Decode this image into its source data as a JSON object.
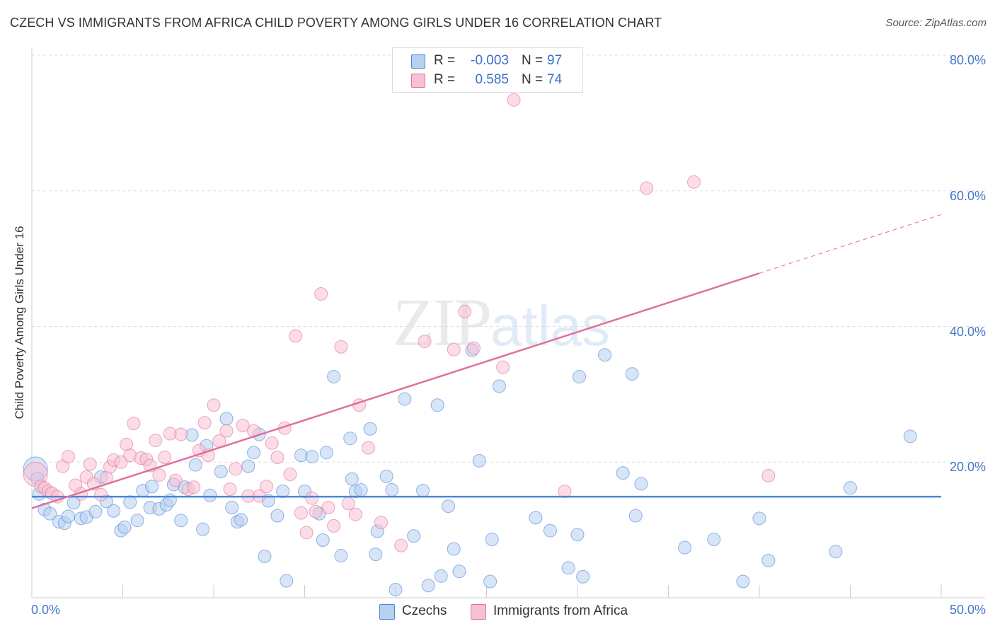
{
  "title": "CZECH VS IMMIGRANTS FROM AFRICA CHILD POVERTY AMONG GIRLS UNDER 16 CORRELATION CHART",
  "source": "Source: ZipAtlas.com",
  "watermark": {
    "zip": "ZIP",
    "atlas": "atlas"
  },
  "legend": {
    "rows": [
      {
        "r_label": "R =",
        "r_value": "-0.003",
        "n_label": "N =",
        "n_value": "97",
        "color": "#b8d0f0"
      },
      {
        "r_label": "R =",
        "r_value": "0.585",
        "n_label": "N =",
        "n_value": "74",
        "color": "#f8c0d4"
      }
    ]
  },
  "chart_data": {
    "type": "scatter",
    "ylabel": "Child Poverty Among Girls Under 16",
    "xlim": [
      0,
      50
    ],
    "ylim": [
      0,
      80
    ],
    "x_tick_labels": [
      "0.0%",
      "50.0%"
    ],
    "y_ticks": [
      20,
      40,
      60,
      80
    ],
    "y_tick_labels": [
      "20.0%",
      "40.0%",
      "60.0%",
      "80.0%"
    ],
    "grid": true,
    "legend_placement": "top-center",
    "series": [
      {
        "name": "Czechs",
        "color": "#4a86d8",
        "fill": "#b8d0f0",
        "trend": {
          "x": [
            0,
            50
          ],
          "y": [
            14.9,
            14.9
          ],
          "dashed_from": 50
        },
        "points": [
          [
            0.2,
            19.0
          ],
          [
            0.4,
            15.3
          ],
          [
            0.7,
            13.0
          ],
          [
            1.0,
            12.4
          ],
          [
            1.5,
            11.2
          ],
          [
            1.8,
            11.0
          ],
          [
            2.0,
            12.0
          ],
          [
            2.3,
            14.0
          ],
          [
            2.7,
            11.7
          ],
          [
            3.0,
            11.9
          ],
          [
            3.5,
            12.7
          ],
          [
            3.8,
            17.8
          ],
          [
            4.1,
            14.2
          ],
          [
            4.5,
            12.8
          ],
          [
            4.9,
            9.9
          ],
          [
            5.1,
            10.4
          ],
          [
            5.4,
            14.1
          ],
          [
            5.8,
            11.4
          ],
          [
            6.1,
            15.8
          ],
          [
            6.5,
            13.3
          ],
          [
            6.6,
            16.4
          ],
          [
            7.0,
            13.1
          ],
          [
            7.4,
            13.7
          ],
          [
            7.6,
            14.4
          ],
          [
            7.8,
            16.7
          ],
          [
            8.2,
            11.4
          ],
          [
            8.4,
            16.3
          ],
          [
            8.8,
            24.0
          ],
          [
            9.0,
            19.6
          ],
          [
            9.4,
            10.1
          ],
          [
            9.6,
            22.4
          ],
          [
            9.8,
            15.1
          ],
          [
            10.4,
            18.6
          ],
          [
            10.7,
            26.4
          ],
          [
            11.0,
            13.3
          ],
          [
            11.3,
            11.2
          ],
          [
            11.5,
            11.5
          ],
          [
            11.9,
            19.4
          ],
          [
            12.2,
            21.4
          ],
          [
            12.5,
            24.1
          ],
          [
            12.8,
            6.1
          ],
          [
            13.0,
            14.3
          ],
          [
            13.5,
            12.1
          ],
          [
            13.8,
            15.7
          ],
          [
            14.0,
            2.5
          ],
          [
            14.8,
            21.0
          ],
          [
            15.0,
            15.7
          ],
          [
            15.4,
            20.8
          ],
          [
            15.8,
            12.4
          ],
          [
            16.0,
            8.5
          ],
          [
            16.2,
            21.4
          ],
          [
            16.6,
            32.6
          ],
          [
            17.0,
            6.2
          ],
          [
            17.5,
            23.5
          ],
          [
            17.6,
            17.5
          ],
          [
            17.8,
            15.7
          ],
          [
            18.1,
            15.9
          ],
          [
            18.6,
            24.9
          ],
          [
            18.9,
            6.4
          ],
          [
            19.0,
            9.8
          ],
          [
            19.5,
            17.9
          ],
          [
            19.8,
            15.9
          ],
          [
            20.0,
            1.2
          ],
          [
            20.5,
            29.3
          ],
          [
            21.0,
            9.1
          ],
          [
            21.5,
            15.8
          ],
          [
            21.8,
            1.8
          ],
          [
            22.3,
            28.4
          ],
          [
            22.5,
            3.2
          ],
          [
            22.9,
            13.5
          ],
          [
            23.2,
            7.2
          ],
          [
            23.5,
            3.9
          ],
          [
            24.2,
            36.5
          ],
          [
            24.6,
            20.2
          ],
          [
            25.2,
            2.4
          ],
          [
            25.3,
            8.6
          ],
          [
            25.7,
            31.2
          ],
          [
            27.7,
            11.8
          ],
          [
            28.5,
            9.9
          ],
          [
            29.5,
            4.4
          ],
          [
            30.0,
            9.3
          ],
          [
            30.1,
            32.6
          ],
          [
            30.3,
            3.1
          ],
          [
            31.5,
            35.8
          ],
          [
            32.5,
            18.4
          ],
          [
            33.0,
            33.0
          ],
          [
            33.2,
            12.1
          ],
          [
            33.5,
            16.8
          ],
          [
            35.9,
            7.4
          ],
          [
            37.5,
            8.6
          ],
          [
            39.1,
            2.4
          ],
          [
            40.0,
            11.7
          ],
          [
            40.5,
            5.5
          ],
          [
            44.2,
            6.8
          ],
          [
            45.0,
            16.2
          ],
          [
            48.3,
            23.8
          ],
          [
            0.3,
            17.6
          ]
        ]
      },
      {
        "name": "Immigrants from Africa",
        "color": "#e0709a",
        "fill": "#f8c0d4",
        "trend": {
          "x": [
            0,
            50
          ],
          "y": [
            13.2,
            56.5
          ],
          "dashed_from": 40
        },
        "points": [
          [
            0.2,
            18.2
          ],
          [
            0.5,
            16.4
          ],
          [
            0.7,
            16.2
          ],
          [
            0.9,
            15.7
          ],
          [
            1.1,
            15.4
          ],
          [
            1.4,
            14.9
          ],
          [
            1.7,
            19.4
          ],
          [
            2.0,
            20.8
          ],
          [
            2.4,
            16.6
          ],
          [
            2.7,
            15.3
          ],
          [
            3.0,
            17.8
          ],
          [
            3.2,
            19.7
          ],
          [
            3.4,
            16.8
          ],
          [
            3.8,
            15.2
          ],
          [
            4.1,
            17.7
          ],
          [
            4.3,
            19.3
          ],
          [
            4.5,
            20.3
          ],
          [
            4.9,
            20.0
          ],
          [
            5.2,
            22.6
          ],
          [
            5.4,
            21.0
          ],
          [
            5.6,
            25.7
          ],
          [
            6.0,
            20.6
          ],
          [
            6.3,
            20.4
          ],
          [
            6.5,
            19.5
          ],
          [
            6.8,
            23.2
          ],
          [
            7.0,
            18.1
          ],
          [
            7.3,
            20.7
          ],
          [
            7.6,
            24.2
          ],
          [
            7.9,
            17.3
          ],
          [
            8.2,
            24.1
          ],
          [
            8.6,
            16.0
          ],
          [
            8.9,
            16.3
          ],
          [
            9.2,
            21.7
          ],
          [
            9.5,
            25.8
          ],
          [
            9.7,
            21.0
          ],
          [
            10.0,
            28.4
          ],
          [
            10.3,
            23.1
          ],
          [
            10.7,
            24.6
          ],
          [
            10.9,
            16.0
          ],
          [
            11.2,
            19.0
          ],
          [
            11.6,
            25.4
          ],
          [
            11.9,
            15.0
          ],
          [
            12.2,
            24.6
          ],
          [
            12.5,
            15.0
          ],
          [
            12.9,
            16.4
          ],
          [
            13.2,
            22.8
          ],
          [
            13.5,
            20.7
          ],
          [
            13.9,
            25.0
          ],
          [
            14.2,
            18.2
          ],
          [
            14.5,
            38.6
          ],
          [
            14.8,
            12.5
          ],
          [
            15.1,
            9.6
          ],
          [
            15.4,
            14.7
          ],
          [
            15.6,
            12.7
          ],
          [
            15.9,
            44.8
          ],
          [
            16.3,
            13.3
          ],
          [
            16.6,
            10.6
          ],
          [
            17.0,
            37.0
          ],
          [
            17.4,
            13.9
          ],
          [
            17.8,
            12.3
          ],
          [
            18.0,
            28.4
          ],
          [
            18.5,
            22.1
          ],
          [
            19.2,
            11.1
          ],
          [
            20.3,
            7.7
          ],
          [
            21.6,
            37.8
          ],
          [
            23.2,
            36.6
          ],
          [
            23.8,
            42.2
          ],
          [
            24.3,
            36.8
          ],
          [
            25.9,
            34.0
          ],
          [
            26.5,
            73.4
          ],
          [
            29.3,
            15.7
          ],
          [
            33.8,
            60.4
          ],
          [
            36.4,
            61.3
          ],
          [
            40.5,
            18.0
          ]
        ]
      }
    ]
  }
}
